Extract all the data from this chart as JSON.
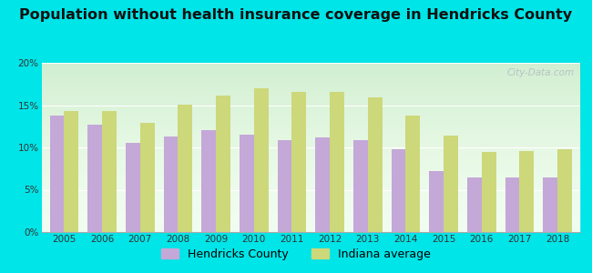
{
  "title": "Population without health insurance coverage in Hendricks County",
  "years": [
    2005,
    2006,
    2007,
    2008,
    2009,
    2010,
    2011,
    2012,
    2013,
    2014,
    2015,
    2016,
    2017,
    2018
  ],
  "hendricks": [
    13.8,
    12.7,
    10.5,
    11.3,
    12.0,
    11.5,
    10.9,
    11.2,
    10.9,
    9.8,
    7.2,
    6.5,
    6.5,
    6.5
  ],
  "indiana": [
    14.3,
    14.3,
    12.9,
    15.1,
    16.1,
    17.0,
    16.6,
    16.6,
    15.9,
    13.8,
    11.4,
    9.5,
    9.6,
    9.8
  ],
  "hendricks_color": "#c4a8d8",
  "indiana_color": "#ccd87a",
  "bg_top": "#f0fdf0",
  "bg_bottom": "#d8f0e0",
  "outer_background": "#00e5e8",
  "ylim": [
    0,
    20
  ],
  "yticks": [
    0,
    5,
    10,
    15,
    20
  ],
  "ytick_labels": [
    "0%",
    "5%",
    "10%",
    "15%",
    "20%"
  ],
  "bar_width": 0.38,
  "title_fontsize": 11.5,
  "legend_fontsize": 9,
  "watermark": "City-Data.com"
}
